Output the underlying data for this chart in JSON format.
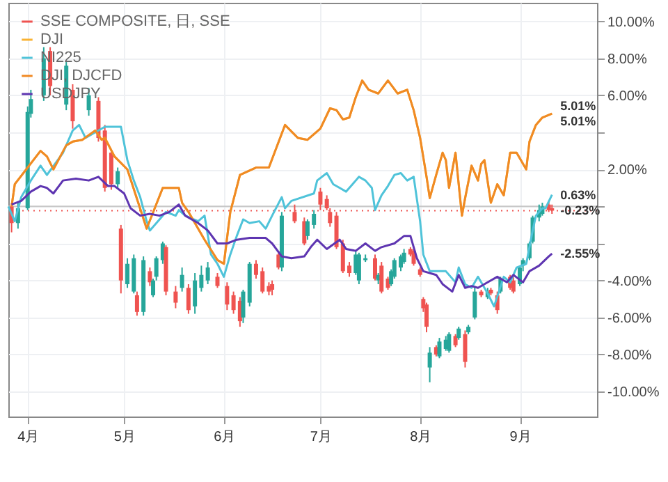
{
  "chart_data": {
    "type": "candlestick",
    "xlim": [
      "--03-26",
      "--09-25"
    ],
    "xticks": [
      {
        "value": "--04-01",
        "label": "4月"
      },
      {
        "value": "--05-01",
        "label": "5月"
      },
      {
        "value": "--06-01",
        "label": "6月"
      },
      {
        "value": "--07-01",
        "label": "7月"
      },
      {
        "value": "--08-01",
        "label": "8月"
      },
      {
        "value": "--09-01",
        "label": "9月"
      }
    ],
    "ylim": [
      -11.35,
      11
    ],
    "yticks": [
      {
        "value": -10,
        "label": "-10.00%"
      },
      {
        "value": -8,
        "label": "-8.00%"
      },
      {
        "value": -6,
        "label": "-6.00%"
      },
      {
        "value": -4,
        "label": "-4.00%"
      },
      {
        "value": -2,
        "label": null
      },
      {
        "value": 0,
        "label": null
      },
      {
        "value": 2,
        "label": "2.00%"
      },
      {
        "value": 4,
        "label": null
      },
      {
        "value": 6,
        "label": "6.00%"
      },
      {
        "value": 8,
        "label": "8.00%"
      },
      {
        "value": 10,
        "label": "10.00%"
      }
    ],
    "grid": true,
    "legend": "top left",
    "marker": "none",
    "line_style": "solid",
    "ref_lines": [
      {
        "axis": "y",
        "value": 0,
        "color": "#c8c8c8",
        "line_style": "solid"
      },
      {
        "axis": "y",
        "value": -0.23,
        "color": "#ef5350",
        "line_style": "dotted"
      }
    ],
    "annotations": [
      {
        "text": "5.01%",
        "x": "--09-11",
        "y": 5.01
      },
      {
        "text": "5.01%",
        "x": "--09-11",
        "y": 5.01
      },
      {
        "text": "0.63%",
        "x": "--09-11",
        "y": 0.63
      },
      {
        "text": "-0.23%",
        "x": "--09-11",
        "y": -0.23
      },
      {
        "text": "-2.55%",
        "x": "--09-11",
        "y": -2.55
      }
    ],
    "series": [
      {
        "name": "SSE COMPOSITE, 日, SSE",
        "type": "candlestick",
        "color": "#ef5350",
        "x": [
          "--03-27",
          "--03-29",
          "--04-01",
          "--04-02",
          "--04-06",
          "--04-08",
          "--04-13",
          "--04-15",
          "--04-20",
          "--04-23",
          "--04-25",
          "--04-27",
          "--04-29",
          "--04-30",
          "--05-02",
          "--05-04",
          "--05-05",
          "--05-07",
          "--05-09",
          "--05-10",
          "--05-11",
          "--05-13",
          "--05-14",
          "--05-17",
          "--05-19",
          "--05-21",
          "--05-23",
          "--05-25",
          "--05-27",
          "--05-30",
          "--06-02",
          "--06-04",
          "--06-06",
          "--06-07",
          "--06-09",
          "--06-11",
          "--06-13",
          "--06-15",
          "--06-16",
          "--06-18",
          "--06-19",
          "--06-23",
          "--06-26",
          "--06-27",
          "--06-29",
          "--07-01",
          "--07-03",
          "--07-04",
          "--07-06",
          "--07-08",
          "--07-10",
          "--07-12",
          "--07-13",
          "--07-15",
          "--07-18",
          "--07-19",
          "--07-20",
          "--07-22",
          "--07-23",
          "--07-24",
          "--07-26",
          "--07-27",
          "--07-29",
          "--07-30",
          "--08-01",
          "--08-02",
          "--08-03",
          "--08-04",
          "--08-06",
          "--08-07",
          "--08-09",
          "--08-10",
          "--08-12",
          "--08-13",
          "--08-15",
          "--08-16",
          "--08-18",
          "--08-20",
          "--08-22",
          "--08-23",
          "--08-25",
          "--08-26",
          "--08-29",
          "--08-30",
          "--09-01",
          "--09-02",
          "--09-04",
          "--09-05",
          "--09-07",
          "--09-08",
          "--09-10",
          "--09-11"
        ],
        "ohlc": [
          [
            0,
            0.2,
            -1.4,
            -0.9
          ],
          [
            -0.9,
            0.2,
            -1.2,
            -0.1
          ],
          [
            -0.1,
            5.4,
            -0.2,
            5.1
          ],
          [
            5.0,
            6.3,
            4.8,
            5.8
          ],
          [
            6.0,
            8.6,
            5.7,
            8.0
          ],
          [
            8.4,
            8.6,
            6.0,
            6.5
          ],
          [
            5.5,
            7.8,
            5.2,
            7.6
          ],
          [
            6.3,
            6.6,
            4.2,
            4.6
          ],
          [
            5.2,
            6.4,
            4.9,
            6.0
          ],
          [
            5.7,
            5.9,
            3.5,
            3.7
          ],
          [
            4.1,
            4.4,
            0.8,
            1.0
          ],
          [
            2.9,
            3.1,
            0.9,
            1.2
          ],
          [
            1.2,
            2.1,
            1.0,
            1.9
          ],
          [
            -1.2,
            -1.0,
            -4.7,
            -4.0
          ],
          [
            -4.2,
            -2.8,
            -4.4,
            -3.1
          ],
          [
            -4.6,
            -2.6,
            -4.7,
            -2.8
          ],
          [
            -4.8,
            -4.6,
            -5.9,
            -5.7
          ],
          [
            -5.7,
            -2.7,
            -5.9,
            -2.9
          ],
          [
            -3.5,
            -3.3,
            -4.3,
            -4.1
          ],
          [
            -4.8,
            -3.9,
            -4.9,
            -4.0
          ],
          [
            -3.8,
            -2.7,
            -4.0,
            -2.8
          ],
          [
            -2.9,
            -1.9,
            -3.1,
            -2.0
          ],
          [
            -2.2,
            -2.1,
            -4.8,
            -4.6
          ],
          [
            -4.6,
            -4.3,
            -5.5,
            -5.2
          ],
          [
            -4.4,
            -3.3,
            -4.6,
            -3.7
          ],
          [
            -4.4,
            -4.2,
            -5.8,
            -5.6
          ],
          [
            -5.4,
            -3.6,
            -5.8,
            -4.0
          ],
          [
            -4.4,
            -3.2,
            -4.6,
            -3.7
          ],
          [
            -4.0,
            -3.0,
            -4.2,
            -3.3
          ],
          [
            -3.8,
            -3.6,
            -4.4,
            -4.3
          ],
          [
            -4.3,
            -4.1,
            -5.6,
            -5.3
          ],
          [
            -4.8,
            -4.6,
            -5.8,
            -5.6
          ],
          [
            -5.1,
            -4.9,
            -6.5,
            -6.2
          ],
          [
            -6.0,
            -4.5,
            -6.3,
            -4.6
          ],
          [
            -5.2,
            -3.0,
            -5.4,
            -3.1
          ],
          [
            -3.1,
            -2.9,
            -3.9,
            -3.7
          ],
          [
            -3.5,
            -3.3,
            -4.7,
            -4.6
          ],
          [
            -4.3,
            -4.1,
            -4.8,
            -4.6
          ],
          [
            -4.2,
            -4.0,
            -4.8,
            -4.5
          ],
          [
            -2.6,
            -2.4,
            -3.4,
            -3.3
          ],
          [
            -3.3,
            -0.3,
            -3.5,
            -0.5
          ],
          [
            -0.3,
            0.1,
            -0.9,
            -0.8
          ],
          [
            -0.8,
            -0.6,
            -2.1,
            -2.0
          ],
          [
            -1.6,
            -0.7,
            -1.8,
            -0.8
          ],
          [
            -1.0,
            -0.2,
            -1.2,
            -0.4
          ],
          [
            0.8,
            1.0,
            -0.2,
            0.1
          ],
          [
            0.4,
            0.6,
            -0.2,
            -0.1
          ],
          [
            -0.3,
            -0.1,
            -1.1,
            -0.9
          ],
          [
            -0.5,
            -0.3,
            -2.3,
            -2.2
          ],
          [
            -2.0,
            -1.8,
            -3.6,
            -3.5
          ],
          [
            -3.2,
            -3.0,
            -3.8,
            -3.6
          ],
          [
            -3.6,
            -2.4,
            -3.7,
            -2.6
          ],
          [
            -4.0,
            -2.5,
            -4.2,
            -2.6
          ],
          [
            -2.9,
            -2.6,
            -3.0,
            -2.8
          ],
          [
            -2.8,
            -2.6,
            -4.0,
            -3.9
          ],
          [
            -4.0,
            -3.6,
            -4.2,
            -3.7
          ],
          [
            -3.2,
            -3.0,
            -4.7,
            -4.6
          ],
          [
            -3.9,
            -3.8,
            -4.5,
            -4.4
          ],
          [
            -4.2,
            -3.4,
            -4.3,
            -3.5
          ],
          [
            -3.8,
            -2.8,
            -3.9,
            -2.9
          ],
          [
            -3.3,
            -2.6,
            -3.5,
            -2.7
          ],
          [
            -3.0,
            -2.3,
            -3.1,
            -2.5
          ],
          [
            -2.3,
            -2.2,
            -2.7,
            -2.6
          ],
          [
            -2.4,
            -2.3,
            -3.2,
            -3.1
          ],
          [
            -3.4,
            -3.3,
            -3.8,
            -3.7
          ],
          [
            -5.0,
            -4.9,
            -5.7,
            -5.5
          ],
          [
            -5.3,
            -5.2,
            -6.8,
            -6.5
          ],
          [
            -8.7,
            -7.6,
            -9.5,
            -7.9
          ],
          [
            -7.6,
            -7.5,
            -8.1,
            -8.0
          ],
          [
            -8.1,
            -7.1,
            -8.2,
            -7.3
          ],
          [
            -7.7,
            -7.0,
            -7.8,
            -7.2
          ],
          [
            -7.8,
            -6.8,
            -7.9,
            -6.9
          ],
          [
            -7.0,
            -6.9,
            -7.6,
            -7.5
          ],
          [
            -7.1,
            -6.5,
            -7.2,
            -6.6
          ],
          [
            -6.9,
            -6.7,
            -8.7,
            -8.4
          ],
          [
            -6.8,
            -6.4,
            -6.9,
            -6.5
          ],
          [
            -6.0,
            -4.3,
            -6.1,
            -4.6
          ],
          [
            -4.6,
            -4.5,
            -4.9,
            -4.8
          ],
          [
            -4.9,
            -4.4,
            -5.0,
            -4.6
          ],
          [
            -4.5,
            -4.4,
            -4.8,
            -4.7
          ],
          [
            -4.8,
            -4.6,
            -5.8,
            -5.6
          ],
          [
            -4.6,
            -3.8,
            -4.7,
            -3.9
          ],
          [
            -3.8,
            -3.7,
            -4.5,
            -4.4
          ],
          [
            -4.0,
            -3.8,
            -4.7,
            -4.6
          ],
          [
            -4.2,
            -3.2,
            -4.3,
            -3.3
          ],
          [
            -3.2,
            -2.8,
            -3.5,
            -2.9
          ],
          [
            -2.8,
            -1.9,
            -2.9,
            -2.0
          ],
          [
            -1.9,
            -0.5,
            -2.0,
            -0.6
          ],
          [
            -0.6,
            0.1,
            -0.8,
            -0.2
          ],
          [
            -0.4,
            0.2,
            -0.5,
            0.0
          ],
          [
            0.1,
            0.3,
            -0.3,
            -0.2
          ],
          [
            -0.1,
            0.1,
            -0.4,
            -0.23
          ]
        ],
        "colors": [
          "#ef5350",
          "#26a69a",
          "#26a69a",
          "#26a69a",
          "#26a69a",
          "#ef5350",
          "#26a69a",
          "#ef5350",
          "#26a69a",
          "#ef5350",
          "#ef5350",
          "#ef5350",
          "#26a69a",
          "#ef5350",
          "#26a69a",
          "#26a69a",
          "#ef5350",
          "#26a69a",
          "#ef5350",
          "#26a69a",
          "#26a69a",
          "#26a69a",
          "#ef5350",
          "#ef5350",
          "#26a69a",
          "#ef5350",
          "#26a69a",
          "#26a69a",
          "#26a69a",
          "#ef5350",
          "#ef5350",
          "#ef5350",
          "#ef5350",
          "#26a69a",
          "#26a69a",
          "#ef5350",
          "#ef5350",
          "#ef5350",
          "#ef5350",
          "#ef5350",
          "#26a69a",
          "#ef5350",
          "#ef5350",
          "#26a69a",
          "#26a69a",
          "#ef5350",
          "#ef5350",
          "#ef5350",
          "#ef5350",
          "#ef5350",
          "#ef5350",
          "#26a69a",
          "#26a69a",
          "#26a69a",
          "#ef5350",
          "#26a69a",
          "#ef5350",
          "#ef5350",
          "#26a69a",
          "#26a69a",
          "#26a69a",
          "#26a69a",
          "#ef5350",
          "#ef5350",
          "#ef5350",
          "#ef5350",
          "#ef5350",
          "#26a69a",
          "#ef5350",
          "#26a69a",
          "#26a69a",
          "#26a69a",
          "#ef5350",
          "#26a69a",
          "#ef5350",
          "#26a69a",
          "#26a69a",
          "#ef5350",
          "#26a69a",
          "#ef5350",
          "#ef5350",
          "#26a69a",
          "#ef5350",
          "#ef5350",
          "#26a69a",
          "#26a69a",
          "#26a69a",
          "#26a69a",
          "#26a69a",
          "#26a69a",
          "#ef5350",
          "#ef5350"
        ]
      },
      {
        "name": "DJI",
        "type": "line",
        "color": "#f9b233",
        "x": [
          "--03-27",
          "--03-28",
          "--04-05",
          "--04-07",
          "--04-09",
          "--04-13",
          "--04-15",
          "--04-18",
          "--04-22",
          "--04-24",
          "--04-25",
          "--04-28",
          "--05-02",
          "--05-08",
          "--05-13",
          "--05-18",
          "--05-19",
          "--05-21",
          "--05-26",
          "--05-30",
          "--06-01",
          "--06-03",
          "--06-06",
          "--06-11",
          "--06-15",
          "--06-20",
          "--06-24",
          "--06-27",
          "--07-01",
          "--07-04",
          "--07-06",
          "--07-08",
          "--07-10",
          "--07-12",
          "--07-14",
          "--07-16",
          "--07-19",
          "--07-22",
          "--07-25",
          "--07-28",
          "--07-30",
          "--08-01",
          "--08-03",
          "--08-04",
          "--08-06",
          "--08-08",
          "--08-09",
          "--08-10",
          "--08-12",
          "--08-14",
          "--08-15",
          "--08-17",
          "--08-19",
          "--08-20",
          "--08-21",
          "--08-23",
          "--08-25",
          "--08-27",
          "--08-29",
          "--08-31",
          "--09-03",
          "--09-04",
          "--09-06",
          "--09-08",
          "--09-11"
        ],
        "values": [
          0,
          1.2,
          3.0,
          2.7,
          2.0,
          3.3,
          3.5,
          3.6,
          4.1,
          3.6,
          3.7,
          2.7,
          2.0,
          -1.2,
          1.0,
          1.0,
          0.2,
          -0.3,
          -1.8,
          -2.9,
          -3.1,
          -0.3,
          1.7,
          2.1,
          2.1,
          4.4,
          3.7,
          3.6,
          4.2,
          5.3,
          5.2,
          4.7,
          4.8,
          5.9,
          6.8,
          6.3,
          6.1,
          6.8,
          6.1,
          6.3,
          5.2,
          3.7,
          1.6,
          0.45,
          1.7,
          2.9,
          2.5,
          1.0,
          2.9,
          -0.5,
          0.45,
          2.2,
          1.4,
          2.3,
          2.5,
          0.2,
          1.2,
          0.6,
          2.9,
          2.9,
          2.0,
          3.5,
          4.4,
          4.8,
          5.01
        ]
      },
      {
        "name": "NI225",
        "type": "line",
        "color": "#4fc3d9",
        "x": [
          "--03-26",
          "--03-28",
          "--03-30",
          "--04-02",
          "--04-05",
          "--04-07",
          "--04-12",
          "--04-15",
          "--04-17",
          "--04-19",
          "--04-22",
          "--04-25",
          "--04-30",
          "--05-02",
          "--05-04",
          "--05-06",
          "--05-08",
          "--05-09",
          "--05-12",
          "--05-14",
          "--05-17",
          "--05-18",
          "--05-20",
          "--05-24",
          "--05-26",
          "--05-28",
          "--05-30",
          "--06-01",
          "--06-03",
          "--06-05",
          "--06-07",
          "--06-09",
          "--06-12",
          "--06-14",
          "--06-16",
          "--06-19",
          "--06-20",
          "--06-22",
          "--06-29",
          "--06-30",
          "--07-03",
          "--07-05",
          "--07-07",
          "--07-09",
          "--07-11",
          "--07-13",
          "--07-15",
          "--07-17",
          "--07-18",
          "--07-20",
          "--07-22",
          "--07-24",
          "--07-26",
          "--07-28",
          "--07-30",
          "--08-01",
          "--08-02",
          "--08-04",
          "--08-06",
          "--08-09",
          "--08-12",
          "--08-13",
          "--08-15",
          "--08-17",
          "--08-19",
          "--08-22",
          "--08-24",
          "--08-27",
          "--08-29",
          "--08-31",
          "--09-03",
          "--09-05",
          "--09-06",
          "--09-08",
          "--09-09",
          "--09-11"
        ],
        "values": [
          0,
          -0.8,
          0.5,
          1.4,
          2.2,
          1.7,
          2.9,
          4.1,
          4.4,
          3.7,
          4.0,
          4.3,
          4.3,
          2.5,
          1.4,
          0.5,
          -0.8,
          -1.3,
          -0.7,
          -0.3,
          -0.5,
          -0.2,
          -0.5,
          -0.8,
          -0.5,
          -2.6,
          -3.1,
          -3.8,
          -2.6,
          -1.6,
          -0.7,
          -0.9,
          -0.8,
          -1.2,
          -0.5,
          0.5,
          -0.1,
          0.3,
          0.7,
          1.4,
          1.8,
          1.2,
          1.0,
          0.8,
          1.2,
          1.6,
          1.4,
          1.0,
          -0.2,
          0.6,
          1.1,
          1.7,
          1.8,
          1.4,
          1.6,
          -0.8,
          -2.6,
          -3.5,
          -3.5,
          -3.5,
          -4.1,
          -3.3,
          -4.2,
          -4.4,
          -3.8,
          -4.7,
          -5.4,
          -3.8,
          -4.1,
          -3.3,
          -3.1,
          -1.3,
          -0.5,
          -0.1,
          -0.1,
          0.63
        ]
      },
      {
        "name": "DJI, DJCFD",
        "type": "line",
        "color": "#f08a24",
        "x": [
          "--03-27",
          "--03-28",
          "--04-05",
          "--04-07",
          "--04-09",
          "--04-13",
          "--04-15",
          "--04-18",
          "--04-22",
          "--04-24",
          "--04-25",
          "--04-28",
          "--05-02",
          "--05-08",
          "--05-13",
          "--05-18",
          "--05-19",
          "--05-21",
          "--05-26",
          "--05-30",
          "--06-01",
          "--06-03",
          "--06-06",
          "--06-11",
          "--06-15",
          "--06-20",
          "--06-24",
          "--06-27",
          "--07-01",
          "--07-04",
          "--07-06",
          "--07-08",
          "--07-10",
          "--07-12",
          "--07-14",
          "--07-16",
          "--07-19",
          "--07-22",
          "--07-25",
          "--07-28",
          "--07-30",
          "--08-01",
          "--08-03",
          "--08-04",
          "--08-06",
          "--08-08",
          "--08-09",
          "--08-10",
          "--08-12",
          "--08-14",
          "--08-15",
          "--08-17",
          "--08-19",
          "--08-20",
          "--08-21",
          "--08-23",
          "--08-25",
          "--08-27",
          "--08-29",
          "--08-31",
          "--09-03",
          "--09-04",
          "--09-06",
          "--09-08",
          "--09-11"
        ],
        "values": [
          0,
          1.2,
          3.0,
          2.7,
          2.0,
          3.3,
          3.5,
          3.6,
          4.1,
          3.6,
          3.7,
          2.7,
          2.0,
          -1.2,
          1.0,
          1.0,
          0.2,
          -0.3,
          -1.8,
          -2.9,
          -3.1,
          -0.3,
          1.7,
          2.1,
          2.1,
          4.4,
          3.7,
          3.6,
          4.2,
          5.3,
          5.2,
          4.7,
          4.8,
          5.9,
          6.8,
          6.3,
          6.1,
          6.8,
          6.1,
          6.3,
          5.2,
          3.7,
          1.6,
          0.45,
          1.7,
          2.9,
          2.5,
          1.0,
          2.9,
          -0.5,
          0.45,
          2.2,
          1.4,
          2.3,
          2.5,
          0.2,
          1.2,
          0.6,
          2.9,
          2.9,
          2.0,
          3.5,
          4.4,
          4.8,
          5.01
        ]
      },
      {
        "name": "USDJPY",
        "type": "line",
        "color": "#5e35b1",
        "x": [
          "--03-27",
          "--03-30",
          "--04-02",
          "--04-05",
          "--04-07",
          "--04-09",
          "--04-12",
          "--04-16",
          "--04-20",
          "--04-23",
          "--04-26",
          "--04-28",
          "--05-01",
          "--05-03",
          "--05-06",
          "--05-09",
          "--05-12",
          "--05-15",
          "--05-18",
          "--05-20",
          "--05-24",
          "--05-27",
          "--05-30",
          "--06-02",
          "--06-05",
          "--06-09",
          "--06-14",
          "--06-16",
          "--06-19",
          "--06-22",
          "--06-26",
          "--06-28",
          "--06-30",
          "--07-03",
          "--07-07",
          "--07-09",
          "--07-12",
          "--07-15",
          "--07-18",
          "--07-20",
          "--07-24",
          "--07-27",
          "--07-29",
          "--07-31",
          "--08-02",
          "--08-06",
          "--08-08",
          "--08-11",
          "--08-13",
          "--08-15",
          "--08-17",
          "--08-19",
          "--08-22",
          "--08-25",
          "--08-28",
          "--08-30",
          "--09-02",
          "--09-04",
          "--09-07",
          "--09-10",
          "--09-11"
        ],
        "values": [
          0.1,
          0.3,
          0.8,
          1.1,
          1.0,
          0.7,
          1.4,
          1.5,
          1.4,
          1.6,
          1.1,
          1.1,
          0.7,
          -0.1,
          -0.5,
          -0.4,
          -0.5,
          -0.3,
          0.1,
          -0.5,
          -0.9,
          -1.3,
          -2.0,
          -2.0,
          -1.8,
          -1.7,
          -1.7,
          -2.0,
          -2.7,
          -2.8,
          -2.7,
          -2.2,
          -1.8,
          -2.3,
          -1.8,
          -2.3,
          -2.4,
          -2.0,
          -2.4,
          -2.2,
          -2.0,
          -1.6,
          -1.6,
          -2.8,
          -3.5,
          -3.7,
          -4.2,
          -4.6,
          -3.7,
          -4.4,
          -4.3,
          -4.4,
          -4.1,
          -3.8,
          -4.1,
          -3.7,
          -4.1,
          -3.5,
          -3.2,
          -2.7,
          -2.55
        ]
      }
    ]
  }
}
